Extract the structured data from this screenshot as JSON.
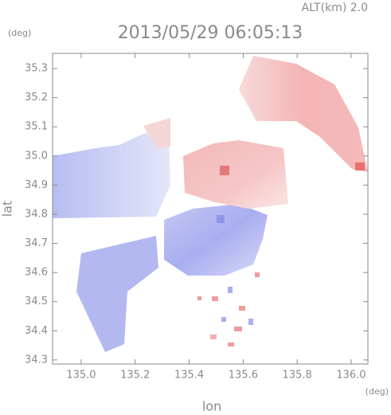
{
  "chart_data": {
    "type": "map",
    "title": "2013/05/29 06:05:13",
    "subtitle": "ALT(km) 2.0",
    "y_unit": "(deg)",
    "x_unit": "(deg)",
    "xlabel": "lon",
    "ylabel": "lat",
    "xlim": [
      134.894,
      136.062
    ],
    "ylim": [
      34.286,
      35.352
    ],
    "xticks": [
      {
        "value": 135,
        "label": "135.0"
      },
      135.2,
      135.4,
      135.6,
      135.8,
      {
        "value": 136,
        "label": "136.0"
      }
    ],
    "yticks": [
      34.3,
      34.4,
      34.5,
      34.6,
      34.7,
      34.8,
      34.9,
      {
        "value": 35,
        "label": "35.0"
      },
      35.1,
      35.2,
      35.3
    ]
  }
}
